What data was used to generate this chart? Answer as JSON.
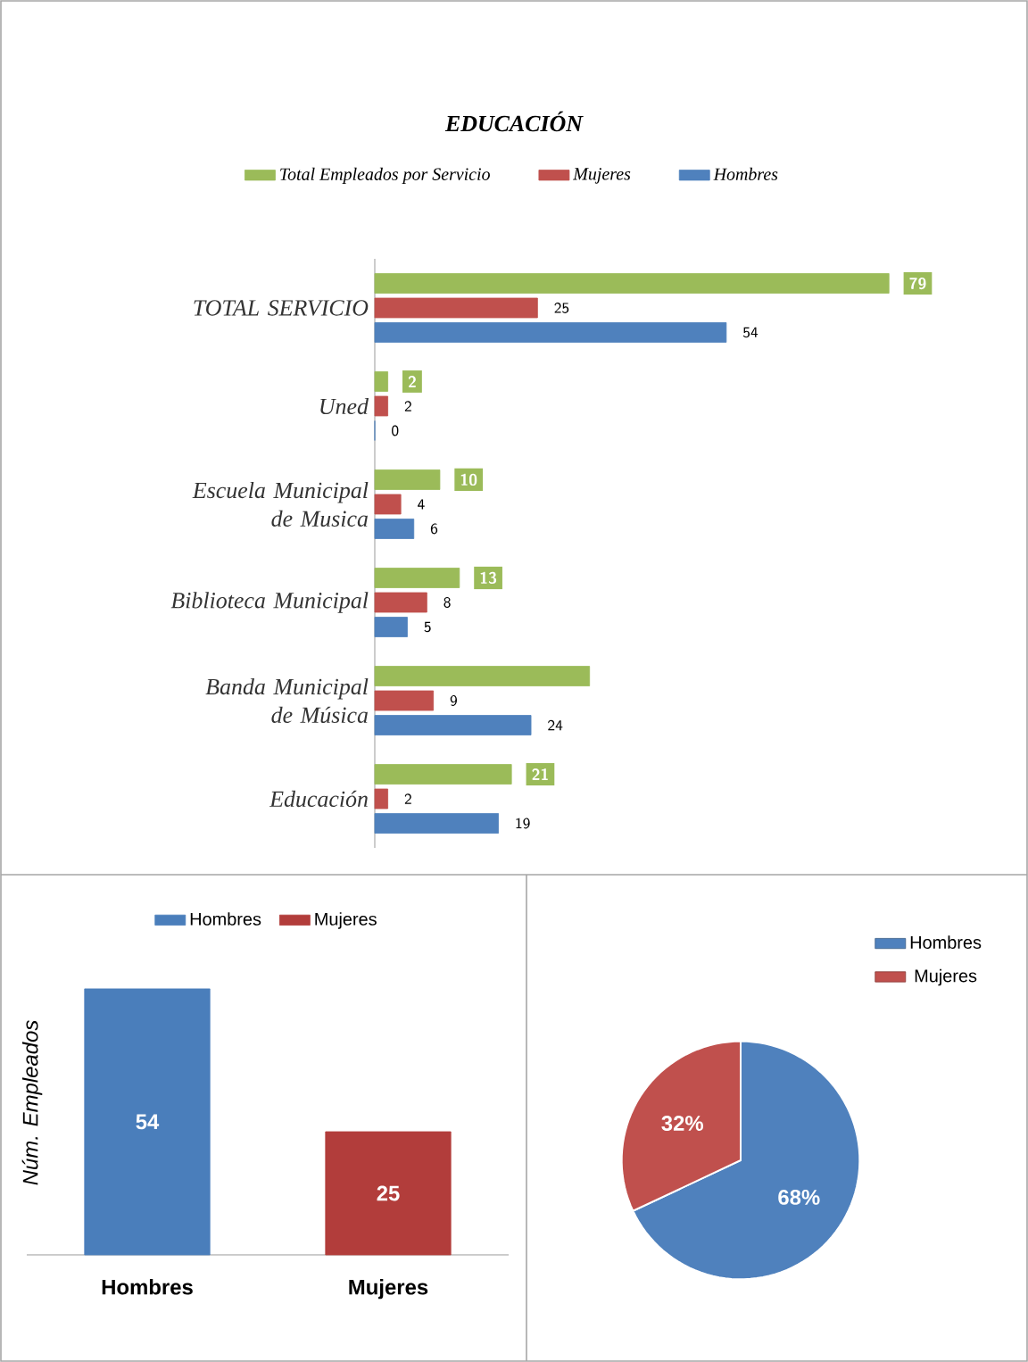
{
  "chart_data": [
    {
      "type": "bar",
      "orientation": "horizontal",
      "title": "EDUCACIÓN",
      "categories": [
        "TOTAL SERVICIO",
        "Uned",
        "Escuela Municipal de Musica",
        "Biblioteca Municipal",
        "Banda Municipal de Música",
        "Educación"
      ],
      "series": [
        {
          "name": "Total Empleados por Servicio",
          "color": "#9bbb59",
          "values": [
            79,
            2,
            10,
            13,
            33,
            21
          ],
          "value_labels": [
            "79",
            "2",
            "10",
            "13",
            null,
            "21"
          ]
        },
        {
          "name": "Mujeres",
          "color": "#c0504d",
          "values": [
            25,
            2,
            4,
            8,
            9,
            2
          ],
          "value_labels": [
            "25",
            "2",
            "4",
            "8",
            "9",
            "2"
          ]
        },
        {
          "name": "Hombres",
          "color": "#4f81bd",
          "values": [
            54,
            0,
            6,
            5,
            24,
            19
          ],
          "value_labels": [
            "54",
            "0",
            "6",
            "5",
            "24",
            "19"
          ]
        }
      ],
      "xlim": [
        0,
        85
      ],
      "legend": "top",
      "tick_labels": "y"
    },
    {
      "type": "bar",
      "categories": [
        "Hombres",
        "Mujeres"
      ],
      "series": [
        {
          "name": "Hombres",
          "color": "#4a7ebb",
          "values": [
            54,
            null
          ]
        },
        {
          "name": "Mujeres",
          "color": "#b23d3b",
          "values": [
            null,
            25
          ]
        }
      ],
      "ylabel": "Núm. Empleados",
      "data_labels": true,
      "legend": "top",
      "tick_labels": "x"
    },
    {
      "type": "pie",
      "categories": [
        "Hombres",
        "Mujeres"
      ],
      "values": [
        68,
        32
      ],
      "colors": [
        "#4f81bd",
        "#c0504d"
      ],
      "value_labels": [
        "68%",
        "32%"
      ],
      "legend": "right"
    }
  ]
}
